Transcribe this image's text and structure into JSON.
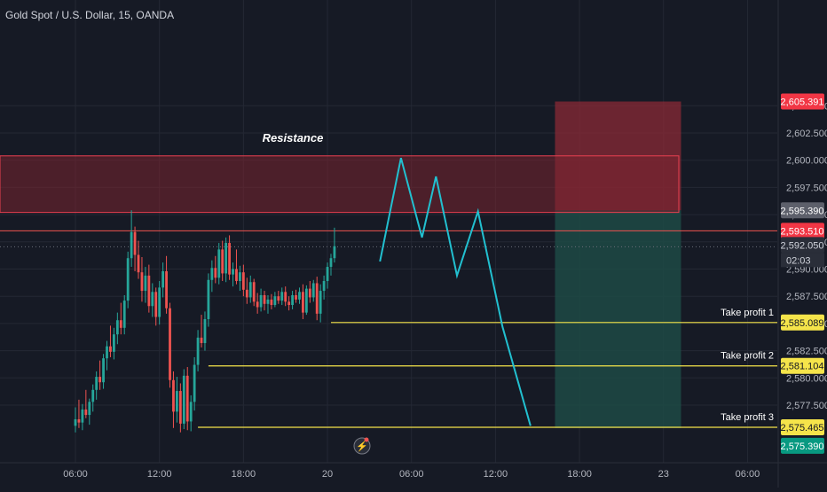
{
  "header": {
    "symbol_title": "Gold Spot / U.S. Dollar, 15, OANDA"
  },
  "colors": {
    "background": "#161a25",
    "grid": "#242834",
    "candle_up": "#26a69a",
    "candle_down": "#ef5350",
    "projection": "#22c0d0",
    "take_profit": "#f5e44a",
    "resistance_fill": "#7a2530",
    "resistance_border": "#e84050",
    "stop_zone": "#8a2a35",
    "target_zone": "#1d4a45",
    "axis_text": "#b2b5be"
  },
  "chart_data": {
    "type": "candlestick",
    "y_axis": {
      "range": [
        2574.5,
        2606.5
      ],
      "ticks": [
        "2,577.500",
        "2,580.000",
        "2,582.500",
        "2,585.000",
        "2,587.500",
        "2,590.000",
        "2,592.500",
        "2,595.000",
        "2,597.500",
        "2,600.000",
        "2,602.500",
        "2,605.000"
      ],
      "tick_values": [
        2577.5,
        2580,
        2582.5,
        2585,
        2587.5,
        2590,
        2592.5,
        2595,
        2597.5,
        2600,
        2602.5,
        2605
      ]
    },
    "x_axis": {
      "labels": [
        "06:00",
        "12:00",
        "18:00",
        "20",
        "06:00",
        "12:00",
        "18:00",
        "23",
        "06:00"
      ],
      "label_bar_index": [
        0,
        24,
        48,
        72,
        96,
        120,
        144,
        168,
        192
      ],
      "total_bars": 196
    },
    "price_labels": [
      {
        "id": "stop",
        "text": "2,605.391",
        "value": 2605.391,
        "kind": "red"
      },
      {
        "id": "entry",
        "text": "2,595.390",
        "value": 2595.39,
        "kind": "gray"
      },
      {
        "id": "line",
        "text": "2,593.510",
        "value": 2593.51,
        "kind": "red"
      },
      {
        "id": "last",
        "text": "2,592.050",
        "value": 2592.05,
        "kind": "dark"
      },
      {
        "id": "tp1",
        "text": "2,585.089",
        "value": 2585.089,
        "kind": "yellow"
      },
      {
        "id": "tp2",
        "text": "2,581.104",
        "value": 2581.104,
        "kind": "yellow"
      },
      {
        "id": "tp3",
        "text": "2,575.465",
        "value": 2575.465,
        "kind": "yellow"
      },
      {
        "id": "target",
        "text": "2,575.390",
        "value": 2575.39,
        "kind": "teal"
      }
    ],
    "countdown": "02:03",
    "resistance": {
      "label": "Resistance",
      "low": 2595.2,
      "high": 2600.4,
      "bar_start": -22,
      "bar_end": 172
    },
    "red_line_value": 2593.51,
    "take_profits": [
      {
        "label": "Take profit 1",
        "value": 2585.089,
        "bar_start": 73
      },
      {
        "label": "Take profit 2",
        "value": 2581.104,
        "bar_start": 38
      },
      {
        "label": "Take profit 3",
        "value": 2575.465,
        "bar_start": 35
      }
    ],
    "position": {
      "bar_start": 137,
      "bar_end": 173,
      "entry": 2595.39,
      "stop": 2605.391,
      "target": 2575.39
    },
    "projection_path": [
      {
        "bar": 87,
        "price": 2590.7
      },
      {
        "bar": 93,
        "price": 2600.2
      },
      {
        "bar": 99,
        "price": 2592.9
      },
      {
        "bar": 103,
        "price": 2598.5
      },
      {
        "bar": 109,
        "price": 2589.4
      },
      {
        "bar": 115,
        "price": 2595.3
      },
      {
        "bar": 122,
        "price": 2584.7
      },
      {
        "bar": 130,
        "price": 2575.6
      }
    ],
    "candles": [
      {
        "o": 2575.6,
        "h": 2577.3,
        "l": 2575.0,
        "c": 2576.2
      },
      {
        "o": 2576.2,
        "h": 2578.0,
        "l": 2575.4,
        "c": 2575.9
      },
      {
        "o": 2575.9,
        "h": 2577.6,
        "l": 2575.2,
        "c": 2577.1
      },
      {
        "o": 2577.1,
        "h": 2578.9,
        "l": 2576.3,
        "c": 2576.6
      },
      {
        "o": 2576.6,
        "h": 2578.1,
        "l": 2575.7,
        "c": 2577.8
      },
      {
        "o": 2577.8,
        "h": 2579.4,
        "l": 2576.9,
        "c": 2578.9
      },
      {
        "o": 2578.9,
        "h": 2580.6,
        "l": 2578.0,
        "c": 2580.1
      },
      {
        "o": 2580.1,
        "h": 2581.6,
        "l": 2578.9,
        "c": 2579.6
      },
      {
        "o": 2579.6,
        "h": 2582.2,
        "l": 2579.0,
        "c": 2581.8
      },
      {
        "o": 2581.8,
        "h": 2583.4,
        "l": 2580.7,
        "c": 2582.9
      },
      {
        "o": 2582.9,
        "h": 2584.8,
        "l": 2581.9,
        "c": 2582.4
      },
      {
        "o": 2582.4,
        "h": 2584.6,
        "l": 2581.7,
        "c": 2584.0
      },
      {
        "o": 2584.0,
        "h": 2586.0,
        "l": 2583.1,
        "c": 2585.3
      },
      {
        "o": 2585.3,
        "h": 2586.9,
        "l": 2584.0,
        "c": 2584.6
      },
      {
        "o": 2584.6,
        "h": 2587.6,
        "l": 2584.0,
        "c": 2587.1
      },
      {
        "o": 2587.1,
        "h": 2591.6,
        "l": 2586.4,
        "c": 2591.0
      },
      {
        "o": 2591.0,
        "h": 2595.4,
        "l": 2590.2,
        "c": 2593.4
      },
      {
        "o": 2593.4,
        "h": 2593.9,
        "l": 2589.8,
        "c": 2591.3
      },
      {
        "o": 2591.3,
        "h": 2592.6,
        "l": 2589.1,
        "c": 2589.7
      },
      {
        "o": 2589.7,
        "h": 2591.1,
        "l": 2587.0,
        "c": 2588.0
      },
      {
        "o": 2588.0,
        "h": 2590.2,
        "l": 2586.9,
        "c": 2589.4
      },
      {
        "o": 2589.4,
        "h": 2590.4,
        "l": 2586.0,
        "c": 2586.6
      },
      {
        "o": 2586.6,
        "h": 2588.7,
        "l": 2585.6,
        "c": 2587.9
      },
      {
        "o": 2587.9,
        "h": 2588.3,
        "l": 2584.8,
        "c": 2585.6
      },
      {
        "o": 2585.6,
        "h": 2588.9,
        "l": 2584.9,
        "c": 2588.3
      },
      {
        "o": 2588.3,
        "h": 2590.6,
        "l": 2587.4,
        "c": 2589.8
      },
      {
        "o": 2589.8,
        "h": 2591.2,
        "l": 2585.9,
        "c": 2586.4
      },
      {
        "o": 2586.4,
        "h": 2586.9,
        "l": 2579.1,
        "c": 2579.8
      },
      {
        "o": 2579.8,
        "h": 2580.6,
        "l": 2575.4,
        "c": 2576.9
      },
      {
        "o": 2576.9,
        "h": 2580.1,
        "l": 2575.9,
        "c": 2578.8
      },
      {
        "o": 2578.8,
        "h": 2579.5,
        "l": 2575.0,
        "c": 2575.8
      },
      {
        "o": 2575.8,
        "h": 2580.8,
        "l": 2575.3,
        "c": 2580.2
      },
      {
        "o": 2580.2,
        "h": 2581.0,
        "l": 2575.2,
        "c": 2576.0
      },
      {
        "o": 2576.0,
        "h": 2578.4,
        "l": 2575.1,
        "c": 2577.8
      },
      {
        "o": 2577.8,
        "h": 2581.9,
        "l": 2577.0,
        "c": 2581.2
      },
      {
        "o": 2581.2,
        "h": 2584.4,
        "l": 2580.6,
        "c": 2583.7
      },
      {
        "o": 2583.7,
        "h": 2585.8,
        "l": 2582.8,
        "c": 2583.2
      },
      {
        "o": 2583.2,
        "h": 2586.1,
        "l": 2582.5,
        "c": 2585.4
      },
      {
        "o": 2585.4,
        "h": 2589.6,
        "l": 2584.7,
        "c": 2589.0
      },
      {
        "o": 2589.0,
        "h": 2590.8,
        "l": 2587.9,
        "c": 2590.1
      },
      {
        "o": 2590.1,
        "h": 2591.2,
        "l": 2588.7,
        "c": 2589.2
      },
      {
        "o": 2589.2,
        "h": 2592.4,
        "l": 2588.6,
        "c": 2591.8
      },
      {
        "o": 2591.8,
        "h": 2592.6,
        "l": 2588.9,
        "c": 2589.6
      },
      {
        "o": 2589.6,
        "h": 2592.9,
        "l": 2588.8,
        "c": 2592.4
      },
      {
        "o": 2592.4,
        "h": 2593.1,
        "l": 2589.0,
        "c": 2589.5
      },
      {
        "o": 2589.5,
        "h": 2590.6,
        "l": 2588.4,
        "c": 2590.0
      },
      {
        "o": 2590.0,
        "h": 2591.8,
        "l": 2588.6,
        "c": 2588.9
      },
      {
        "o": 2588.9,
        "h": 2590.3,
        "l": 2588.0,
        "c": 2589.7
      },
      {
        "o": 2589.7,
        "h": 2590.4,
        "l": 2587.5,
        "c": 2588.1
      },
      {
        "o": 2588.1,
        "h": 2589.2,
        "l": 2586.8,
        "c": 2587.4
      },
      {
        "o": 2587.4,
        "h": 2589.4,
        "l": 2586.9,
        "c": 2588.8
      },
      {
        "o": 2588.8,
        "h": 2589.1,
        "l": 2586.6,
        "c": 2587.0
      },
      {
        "o": 2587.0,
        "h": 2587.8,
        "l": 2585.9,
        "c": 2586.5
      },
      {
        "o": 2586.5,
        "h": 2588.2,
        "l": 2586.1,
        "c": 2587.6
      },
      {
        "o": 2587.6,
        "h": 2588.0,
        "l": 2586.2,
        "c": 2586.8
      },
      {
        "o": 2586.8,
        "h": 2587.6,
        "l": 2585.9,
        "c": 2587.2
      },
      {
        "o": 2587.2,
        "h": 2587.7,
        "l": 2586.3,
        "c": 2586.7
      },
      {
        "o": 2586.7,
        "h": 2587.9,
        "l": 2586.5,
        "c": 2587.5
      },
      {
        "o": 2587.5,
        "h": 2588.0,
        "l": 2586.8,
        "c": 2587.1
      },
      {
        "o": 2587.1,
        "h": 2588.3,
        "l": 2586.7,
        "c": 2587.9
      },
      {
        "o": 2587.9,
        "h": 2588.4,
        "l": 2586.6,
        "c": 2587.0
      },
      {
        "o": 2587.0,
        "h": 2587.5,
        "l": 2586.2,
        "c": 2586.7
      },
      {
        "o": 2586.7,
        "h": 2588.0,
        "l": 2586.3,
        "c": 2587.6
      },
      {
        "o": 2587.6,
        "h": 2588.1,
        "l": 2586.9,
        "c": 2587.2
      },
      {
        "o": 2587.2,
        "h": 2588.3,
        "l": 2586.8,
        "c": 2587.9
      },
      {
        "o": 2587.9,
        "h": 2588.6,
        "l": 2585.4,
        "c": 2586.0
      },
      {
        "o": 2586.0,
        "h": 2588.5,
        "l": 2585.8,
        "c": 2588.2
      },
      {
        "o": 2588.2,
        "h": 2588.9,
        "l": 2586.9,
        "c": 2587.4
      },
      {
        "o": 2587.4,
        "h": 2589.0,
        "l": 2587.0,
        "c": 2588.7
      },
      {
        "o": 2588.7,
        "h": 2589.3,
        "l": 2585.3,
        "c": 2585.9
      },
      {
        "o": 2585.9,
        "h": 2588.6,
        "l": 2585.1,
        "c": 2588.0
      },
      {
        "o": 2588.0,
        "h": 2589.4,
        "l": 2587.2,
        "c": 2588.9
      },
      {
        "o": 2588.9,
        "h": 2590.6,
        "l": 2588.2,
        "c": 2590.2
      },
      {
        "o": 2590.2,
        "h": 2591.4,
        "l": 2589.4,
        "c": 2591.0
      },
      {
        "o": 2591.0,
        "h": 2593.8,
        "l": 2590.6,
        "c": 2592.1
      }
    ]
  }
}
